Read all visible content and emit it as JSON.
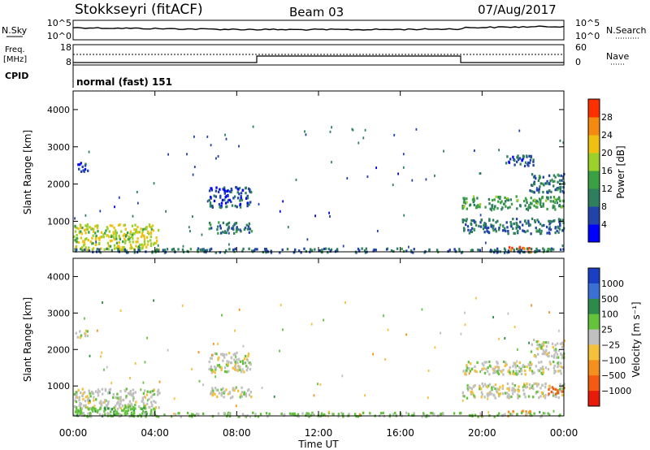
{
  "header": {
    "station": "Stokkseyri (fitACF)",
    "beam": "Beam 03",
    "date": "07/Aug/2017"
  },
  "noise_panel": {
    "left_label": "N.Sky",
    "right_label": "N.Search",
    "left_ticks": [
      "10^5",
      "10^0"
    ],
    "right_ticks": [
      "10^5",
      "10^0"
    ]
  },
  "freq_panel": {
    "left_label_1": "Freq.",
    "left_label_2": "[MHz]",
    "right_label": "Nave",
    "left_ticks": [
      "18",
      "8"
    ],
    "right_ticks": [
      "60",
      "0"
    ]
  },
  "cpid_panel": {
    "left_label": "CPID",
    "mode_text": "normal (fast) 151"
  },
  "power_panel": {
    "ylabel": "Slant Range [km]",
    "yticks": [
      "1000",
      "2000",
      "3000",
      "4000"
    ],
    "colorbar_label": "Power [dB]",
    "colorbar_ticks": [
      "4",
      "8",
      "12",
      "16",
      "20",
      "24",
      "28"
    ]
  },
  "velocity_panel": {
    "ylabel": "Slant Range [km]",
    "yticks": [
      "1000",
      "2000",
      "3000",
      "4000"
    ],
    "colorbar_label": "Velocity [m s⁻¹]",
    "colorbar_ticks": [
      "1000",
      "500",
      "100",
      "25",
      "−25",
      "−100",
      "−500",
      "−1000"
    ]
  },
  "xaxis": {
    "label": "Time UT",
    "ticks": [
      "00:00",
      "04:00",
      "08:00",
      "12:00",
      "16:00",
      "20:00",
      "00:00"
    ]
  },
  "colors": {
    "power_scale": [
      "#0000ff",
      "#2244aa",
      "#2f7f5f",
      "#3aa043",
      "#9bd12a",
      "#f0c010",
      "#f58a10",
      "#ff3000"
    ],
    "velocity_scale": [
      "#1a3fc4",
      "#3c6fd4",
      "#2e8a4a",
      "#64c23c",
      "#c0c0c0",
      "#f5c13a",
      "#f5901e",
      "#f55a12",
      "#e81a0a"
    ]
  },
  "chart_data": [
    {
      "type": "heatmap",
      "quantity": "Power",
      "x_range_hours": [
        0,
        24
      ],
      "y_range_km": [
        180,
        4500
      ],
      "color_range": [
        0,
        30
      ],
      "regions": [
        {
          "t0": 0.0,
          "t1": 4.2,
          "r0": 250,
          "r1": 950,
          "v": 18
        },
        {
          "t0": 0.1,
          "t1": 0.7,
          "r0": 2350,
          "r1": 2600,
          "v": 6
        },
        {
          "t0": 6.6,
          "t1": 8.7,
          "r0": 700,
          "r1": 1000,
          "v": 8
        },
        {
          "t0": 6.6,
          "t1": 8.7,
          "r0": 1400,
          "r1": 1950,
          "v": 6
        },
        {
          "t0": 19.0,
          "t1": 24.0,
          "r0": 1350,
          "r1": 1700,
          "v": 12
        },
        {
          "t0": 19.0,
          "t1": 24.0,
          "r0": 700,
          "r1": 1100,
          "v": 8
        },
        {
          "t0": 22.3,
          "t1": 24.0,
          "r0": 1800,
          "r1": 2300,
          "v": 8
        },
        {
          "t0": 21.0,
          "t1": 22.5,
          "r0": 2500,
          "r1": 2800,
          "v": 6
        },
        {
          "t0": 21.2,
          "t1": 22.4,
          "r0": 200,
          "r1": 350,
          "v": 26
        },
        {
          "t0": 0.0,
          "t1": 24.0,
          "r0": 190,
          "r1": 300,
          "v": 8
        }
      ]
    },
    {
      "type": "heatmap",
      "quantity": "Velocity",
      "x_range_hours": [
        0,
        24
      ],
      "y_range_km": [
        180,
        4500
      ],
      "color_range": [
        -1000,
        1000
      ],
      "regions": [
        {
          "t0": 0.0,
          "t1": 4.2,
          "r0": 400,
          "r1": 950,
          "v": 0
        },
        {
          "t0": 0.0,
          "t1": 4.0,
          "r0": 200,
          "r1": 450,
          "v": 80
        },
        {
          "t0": 0.1,
          "t1": 0.7,
          "r0": 2350,
          "r1": 2600,
          "v": 0
        },
        {
          "t0": 6.6,
          "t1": 8.7,
          "r0": 700,
          "r1": 1000,
          "v": 0
        },
        {
          "t0": 6.6,
          "t1": 8.7,
          "r0": 1400,
          "r1": 1950,
          "v": 0
        },
        {
          "t0": 19.0,
          "t1": 24.0,
          "r0": 1350,
          "r1": 1700,
          "v": 0
        },
        {
          "t0": 19.0,
          "t1": 24.0,
          "r0": 700,
          "r1": 1100,
          "v": 0
        },
        {
          "t0": 22.3,
          "t1": 24.0,
          "r0": 1800,
          "r1": 2300,
          "v": 0
        },
        {
          "t0": 23.2,
          "t1": 24.0,
          "r0": 800,
          "r1": 1000,
          "v": -800
        },
        {
          "t0": 21.2,
          "t1": 22.4,
          "r0": 200,
          "r1": 350,
          "v": -150
        },
        {
          "t0": 0.0,
          "t1": 24.0,
          "r0": 190,
          "r1": 300,
          "v": 40
        }
      ]
    }
  ]
}
